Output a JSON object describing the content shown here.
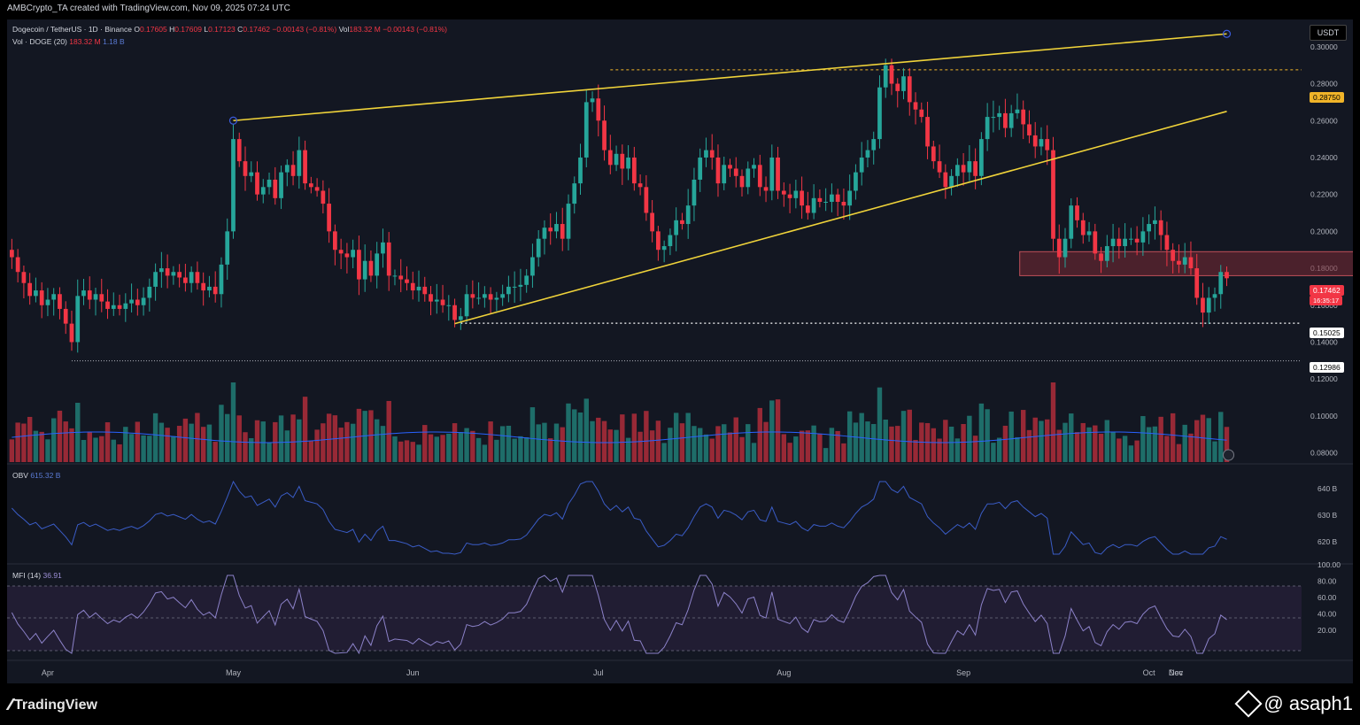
{
  "header": {
    "created": "AMBCrypto_TA created with TradingView.com, Nov 09, 2025 07:24 UTC"
  },
  "legend": {
    "symbol": "Dogecoin / TetherUS · 1D · Binance",
    "o_label": "O",
    "o": "0.17605",
    "h_label": "H",
    "h": "0.17609",
    "l_label": "L",
    "l": "0.17123",
    "c_label": "C",
    "c": "0.17462",
    "change": "−0.00143 (−0.81%)",
    "vol_label": "Vol",
    "vol": "183.32 M",
    "vol_change": "−0.00143 (−0.81%)",
    "vol_line": "Vol · DOGE (20)",
    "vol_val": "183.32 M",
    "vol_ma": "1.18 B"
  },
  "obv": {
    "label": "OBV",
    "value": "615.32 B"
  },
  "mfi": {
    "label": "MFI (14)",
    "value": "36.91"
  },
  "currency_button": "USDT",
  "price_tags": {
    "level_high": "0.28750",
    "current": "0.17462",
    "countdown": "16:35:17",
    "level_mid": "0.15025",
    "level_low": "0.12986"
  },
  "footer": {
    "brand": "TradingView",
    "handle": "@ asaph1"
  },
  "colors": {
    "up": "#26a69a",
    "down": "#f23645",
    "trendline": "#f0d33a",
    "volume_ma": "#2962ff",
    "obv_line": "#3a5cc6",
    "mfi_line": "#8c82c9",
    "zone": "#7a2a35"
  },
  "chart_data": {
    "type": "candlestick",
    "title": "Dogecoin / TetherUS · 1D · Binance",
    "x_ticks": [
      "Apr",
      "May",
      "Jun",
      "Jul",
      "Aug",
      "Sep",
      "Oct",
      "Nov",
      "Dec"
    ],
    "price_axis": [
      "0.30000",
      "0.28000",
      "0.26000",
      "0.24000",
      "0.22000",
      "0.20000",
      "0.18000",
      "0.16000",
      "0.14000",
      "0.12000",
      "0.10000",
      "0.08000"
    ],
    "ylim": [
      0.075,
      0.31
    ],
    "closes": [
      0.186,
      0.178,
      0.172,
      0.165,
      0.168,
      0.16,
      0.163,
      0.166,
      0.158,
      0.15,
      0.14,
      0.165,
      0.168,
      0.163,
      0.166,
      0.162,
      0.158,
      0.16,
      0.158,
      0.161,
      0.163,
      0.16,
      0.164,
      0.17,
      0.178,
      0.18,
      0.176,
      0.178,
      0.175,
      0.172,
      0.178,
      0.172,
      0.168,
      0.17,
      0.166,
      0.182,
      0.2,
      0.25,
      0.238,
      0.23,
      0.232,
      0.22,
      0.224,
      0.228,
      0.218,
      0.232,
      0.236,
      0.23,
      0.244,
      0.226,
      0.224,
      0.222,
      0.215,
      0.2,
      0.19,
      0.188,
      0.186,
      0.19,
      0.174,
      0.184,
      0.176,
      0.188,
      0.194,
      0.176,
      0.176,
      0.174,
      0.172,
      0.168,
      0.17,
      0.166,
      0.162,
      0.163,
      0.16,
      0.16,
      0.152,
      0.154,
      0.166,
      0.164,
      0.164,
      0.166,
      0.163,
      0.164,
      0.166,
      0.17,
      0.17,
      0.171,
      0.176,
      0.186,
      0.196,
      0.202,
      0.2,
      0.204,
      0.196,
      0.215,
      0.226,
      0.24,
      0.27,
      0.272,
      0.26,
      0.244,
      0.236,
      0.242,
      0.234,
      0.24,
      0.226,
      0.224,
      0.21,
      0.2,
      0.19,
      0.192,
      0.198,
      0.206,
      0.204,
      0.214,
      0.228,
      0.24,
      0.244,
      0.24,
      0.226,
      0.236,
      0.234,
      0.23,
      0.224,
      0.234,
      0.236,
      0.224,
      0.222,
      0.24,
      0.222,
      0.22,
      0.218,
      0.222,
      0.214,
      0.21,
      0.218,
      0.216,
      0.216,
      0.22,
      0.216,
      0.214,
      0.222,
      0.232,
      0.24,
      0.244,
      0.25,
      0.278,
      0.29,
      0.28,
      0.276,
      0.284,
      0.27,
      0.266,
      0.262,
      0.246,
      0.238,
      0.232,
      0.224,
      0.23,
      0.236,
      0.232,
      0.238,
      0.23,
      0.25,
      0.262,
      0.262,
      0.264,
      0.256,
      0.264,
      0.266,
      0.258,
      0.252,
      0.246,
      0.25,
      0.244,
      0.196,
      0.186,
      0.196,
      0.214,
      0.206,
      0.198,
      0.2,
      0.188,
      0.184,
      0.192,
      0.196,
      0.192,
      0.196,
      0.196,
      0.194,
      0.2,
      0.204,
      0.206,
      0.198,
      0.19,
      0.184,
      0.182,
      0.186,
      0.18,
      0.164,
      0.156,
      0.164,
      0.166,
      0.178,
      0.1746
    ],
    "volume_ma_label": "Vol · DOGE (20)",
    "levels": [
      0.2875,
      0.15025,
      0.12986
    ],
    "zone": [
      0.176,
      0.189
    ],
    "obv_ticks": [
      "640 B",
      "630 B",
      "620 B"
    ],
    "mfi_ticks": [
      "100.00",
      "80.00",
      "60.00",
      "40.00",
      "20.00"
    ]
  }
}
